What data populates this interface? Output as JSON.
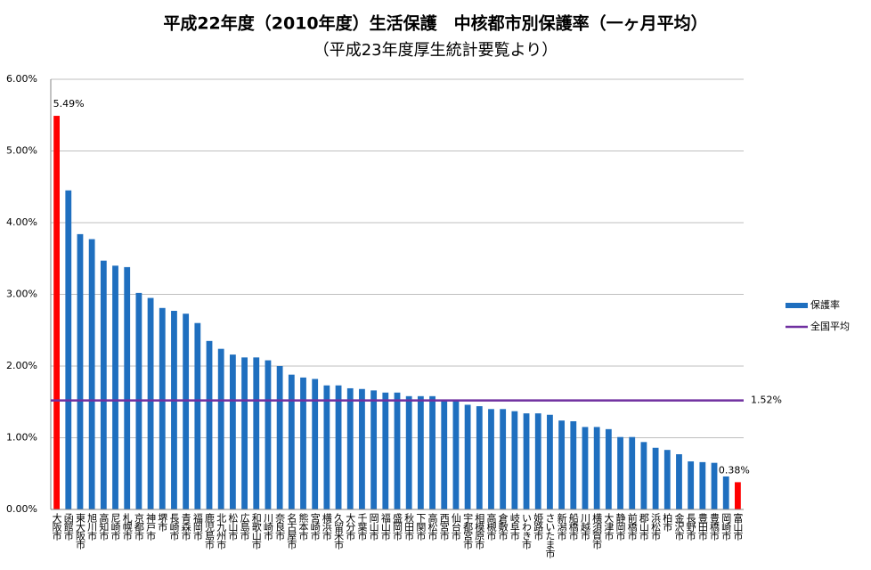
{
  "chart_data": {
    "type": "bar",
    "title": "平成22年度（2010年度）生活保護　中核都市別保護率（一ヶ月平均）",
    "subtitle": "（平成23年度厚生統計要覧より）",
    "categories": [
      "大阪市",
      "函館市",
      "東大阪市",
      "旭川市",
      "高知市",
      "尼崎市",
      "札幌市",
      "京都市",
      "神戸市",
      "堺市",
      "長崎市",
      "青森市",
      "福岡市",
      "鹿児島市",
      "北九州市",
      "松山市",
      "広島市",
      "和歌山市",
      "川崎市",
      "奈良市",
      "名古屋市",
      "熊本市",
      "宮崎市",
      "横浜市",
      "久留米市",
      "大分市",
      "千葉市",
      "岡山市",
      "福山市",
      "盛岡市",
      "秋田市",
      "下関市",
      "高松市",
      "西宮市",
      "仙台市",
      "宇都宮市",
      "相模原市",
      "高槻市",
      "倉敷市",
      "岐阜市",
      "いわき市",
      "姫路市",
      "さいたま市",
      "新潟市",
      "船橋市",
      "川越市",
      "横須賀市",
      "大津市",
      "静岡市",
      "前橋市",
      "郡山市",
      "浜松市",
      "柏市",
      "金沢市",
      "長野市",
      "豊田市",
      "豊橋市",
      "岡崎市",
      "富山市"
    ],
    "series": [
      {
        "name": "保護率",
        "color": "#1f6fbf",
        "values": [
          5.49,
          4.45,
          3.84,
          3.77,
          3.47,
          3.4,
          3.38,
          3.02,
          2.95,
          2.81,
          2.77,
          2.73,
          2.6,
          2.35,
          2.24,
          2.16,
          2.12,
          2.12,
          2.08,
          2.0,
          1.88,
          1.84,
          1.82,
          1.73,
          1.73,
          1.69,
          1.68,
          1.66,
          1.63,
          1.63,
          1.58,
          1.58,
          1.58,
          1.53,
          1.53,
          1.46,
          1.44,
          1.4,
          1.4,
          1.37,
          1.34,
          1.34,
          1.32,
          1.24,
          1.23,
          1.15,
          1.15,
          1.12,
          1.01,
          1.01,
          0.94,
          0.86,
          0.83,
          0.77,
          0.67,
          0.66,
          0.65,
          0.46,
          0.38
        ],
        "colors": [
          "#ff0000",
          "#1f6fbf",
          "#1f6fbf",
          "#1f6fbf",
          "#1f6fbf",
          "#1f6fbf",
          "#1f6fbf",
          "#1f6fbf",
          "#1f6fbf",
          "#1f6fbf",
          "#1f6fbf",
          "#1f6fbf",
          "#1f6fbf",
          "#1f6fbf",
          "#1f6fbf",
          "#1f6fbf",
          "#1f6fbf",
          "#1f6fbf",
          "#1f6fbf",
          "#1f6fbf",
          "#1f6fbf",
          "#1f6fbf",
          "#1f6fbf",
          "#1f6fbf",
          "#1f6fbf",
          "#1f6fbf",
          "#1f6fbf",
          "#1f6fbf",
          "#1f6fbf",
          "#1f6fbf",
          "#1f6fbf",
          "#1f6fbf",
          "#1f6fbf",
          "#1f6fbf",
          "#1f6fbf",
          "#1f6fbf",
          "#1f6fbf",
          "#1f6fbf",
          "#1f6fbf",
          "#1f6fbf",
          "#1f6fbf",
          "#1f6fbf",
          "#1f6fbf",
          "#1f6fbf",
          "#1f6fbf",
          "#1f6fbf",
          "#1f6fbf",
          "#1f6fbf",
          "#1f6fbf",
          "#1f6fbf",
          "#1f6fbf",
          "#1f6fbf",
          "#1f6fbf",
          "#1f6fbf",
          "#1f6fbf",
          "#1f6fbf",
          "#1f6fbf",
          "#1f6fbf",
          "#ff0000"
        ],
        "value_labels": [
          "5.49%",
          null,
          null,
          null,
          null,
          null,
          null,
          null,
          null,
          null,
          null,
          null,
          null,
          null,
          null,
          null,
          null,
          null,
          null,
          null,
          null,
          null,
          null,
          null,
          null,
          null,
          null,
          null,
          null,
          null,
          null,
          null,
          null,
          null,
          null,
          null,
          null,
          null,
          null,
          null,
          null,
          null,
          null,
          null,
          null,
          null,
          null,
          null,
          null,
          null,
          null,
          null,
          null,
          null,
          null,
          null,
          null,
          null,
          "0.38%"
        ]
      }
    ],
    "average": {
      "name": "全国平均",
      "value": 1.52,
      "label": "1.52%",
      "color": "#7030a0"
    },
    "ylim": [
      0,
      6
    ],
    "yticks": [
      {
        "value": 0,
        "label": "0.00%"
      },
      {
        "value": 1,
        "label": "1.00%"
      },
      {
        "value": 2,
        "label": "2.00%"
      },
      {
        "value": 3,
        "label": "3.00%"
      },
      {
        "value": 4,
        "label": "4.00%"
      },
      {
        "value": 5,
        "label": "5.00%"
      },
      {
        "value": 6,
        "label": "6.00%"
      }
    ],
    "grid": true,
    "legend": "right"
  }
}
